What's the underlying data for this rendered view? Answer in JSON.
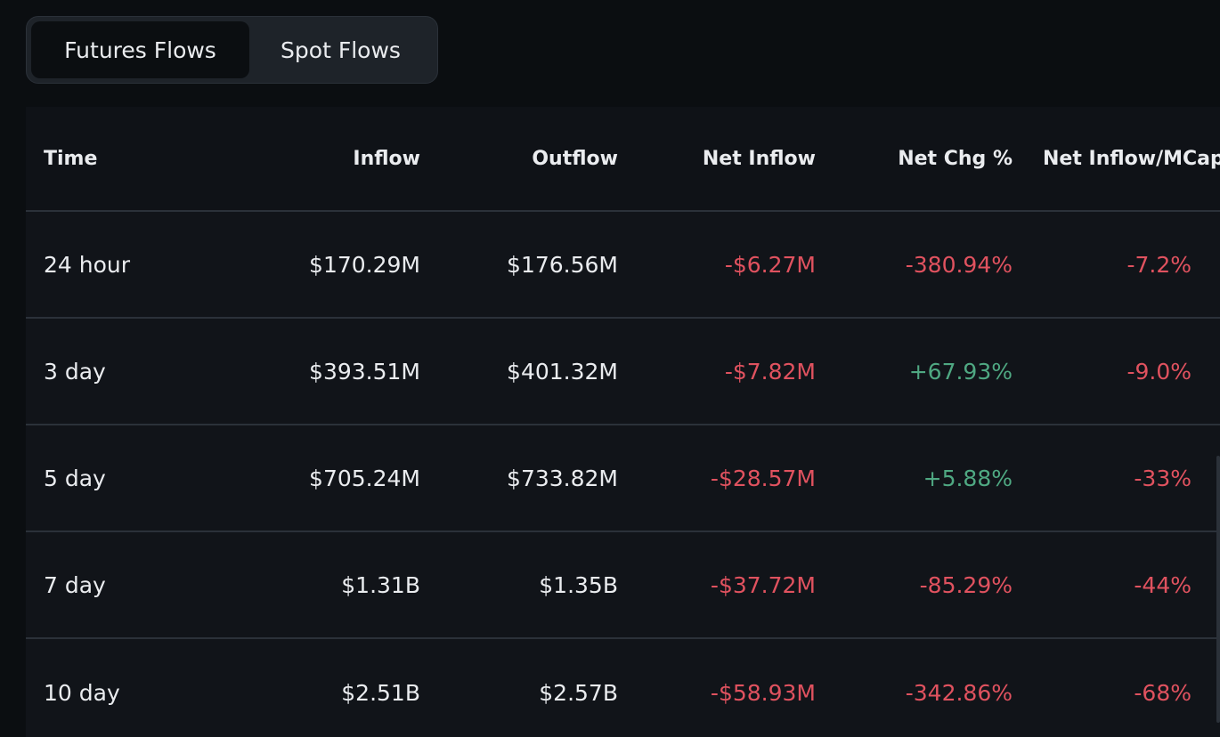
{
  "tabs": [
    {
      "label": "Futures Flows",
      "active": true
    },
    {
      "label": "Spot Flows",
      "active": false
    }
  ],
  "columns": [
    "Time",
    "Inflow",
    "Outflow",
    "Net Inflow",
    "Net Chg %",
    "Net Inflow/MCap"
  ],
  "rows": [
    {
      "time": "24 hour",
      "inflow": "$170.29M",
      "outflow": "$176.56M",
      "net_inflow": "-$6.27M",
      "net_chg": "-380.94%",
      "net_mcap": "-7.2%"
    },
    {
      "time": "3 day",
      "inflow": "$393.51M",
      "outflow": "$401.32M",
      "net_inflow": "-$7.82M",
      "net_chg": "+67.93%",
      "net_mcap": "-9.0%"
    },
    {
      "time": "5 day",
      "inflow": "$705.24M",
      "outflow": "$733.82M",
      "net_inflow": "-$28.57M",
      "net_chg": "+5.88%",
      "net_mcap": "-33%"
    },
    {
      "time": "7 day",
      "inflow": "$1.31B",
      "outflow": "$1.35B",
      "net_inflow": "-$37.72M",
      "net_chg": "-85.29%",
      "net_mcap": "-44%"
    },
    {
      "time": "10 day",
      "inflow": "$2.51B",
      "outflow": "$2.57B",
      "net_inflow": "-$58.93M",
      "net_chg": "-342.86%",
      "net_mcap": "-68%"
    }
  ],
  "colors": {
    "negative": "#e0525f",
    "positive": "#4fa882",
    "background": "#0b0e11"
  }
}
